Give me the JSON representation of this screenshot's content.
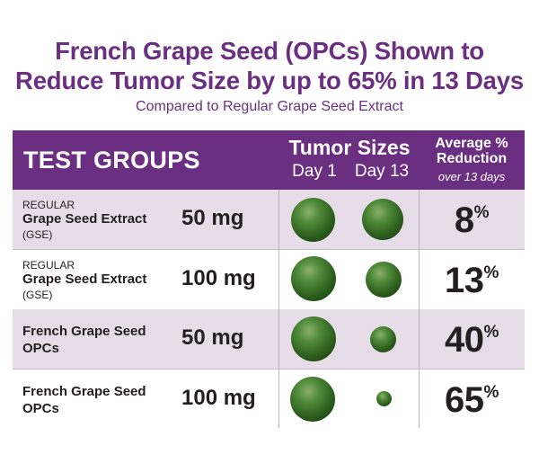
{
  "title_line1": "French Grape Seed (OPCs) Shown to",
  "title_line2": "Reduce Tumor Size by up to 65% in 13 Days",
  "subtitle": "Compared to Regular Grape Seed Extract",
  "header": {
    "test_groups": "TEST GROUPS",
    "tumor_sizes": "Tumor Sizes",
    "day1": "Day 1",
    "day13": "Day 13",
    "avg_line1": "Average %",
    "avg_line2": "Reduction",
    "avg_sub": "over 13 days"
  },
  "colors": {
    "header_purple": "#6b2f82",
    "row_shade": "#e6dde9",
    "tumor_green": "#2c5e1d"
  },
  "icons": [
    "tumor-sphere-icon"
  ],
  "chart_data": {
    "type": "table",
    "columns": [
      "TEST GROUPS",
      "Day 1",
      "Day 13",
      "Average % Reduction"
    ],
    "rows": [
      {
        "small": "REGULAR",
        "name": "Grape Seed Extract",
        "abbr": "(GSE)",
        "dose": "50 mg",
        "reduction": 8,
        "unit": "%"
      },
      {
        "small": "REGULAR",
        "name": "Grape Seed Extract",
        "abbr": "(GSE)",
        "dose": "100 mg",
        "reduction": 13,
        "unit": "%"
      },
      {
        "small": "",
        "name": "French Grape Seed",
        "name2": "OPCs",
        "dose": "50 mg",
        "reduction": 40,
        "unit": "%"
      },
      {
        "small": "",
        "name": "French Grape Seed",
        "name2": "OPCs",
        "dose": "100 mg",
        "reduction": 65,
        "unit": "%"
      }
    ]
  }
}
